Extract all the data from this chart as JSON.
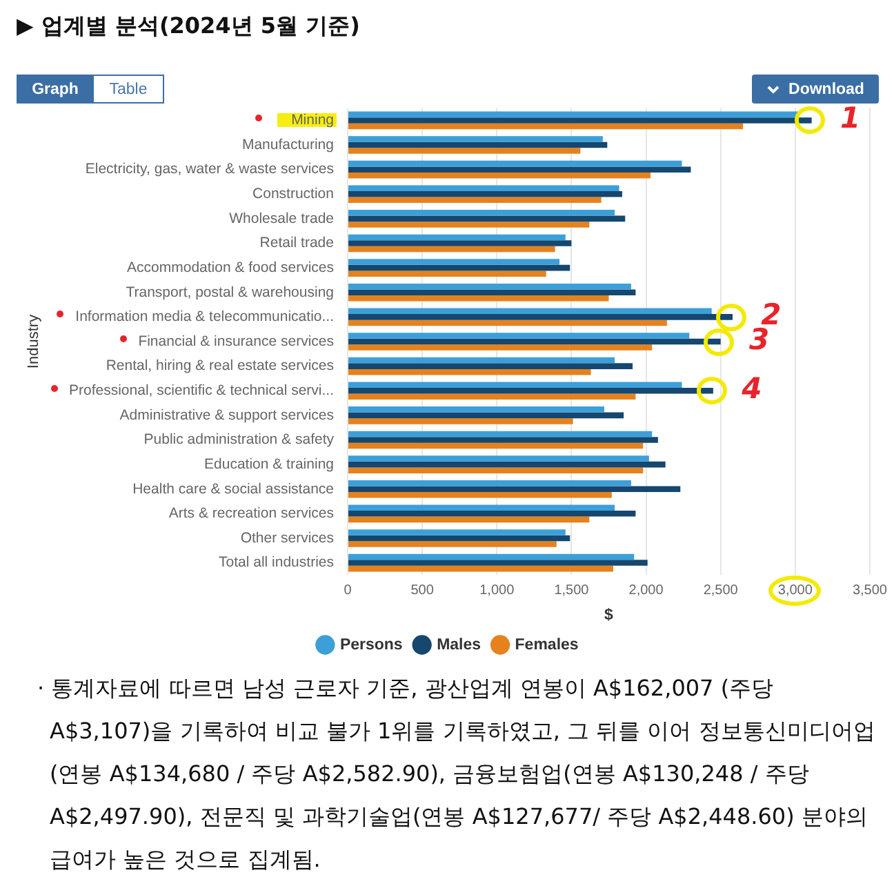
{
  "chart_data": {
    "type": "bar",
    "orientation": "horizontal",
    "title": "▶ 업계별 분석(2024년 5월 기준)",
    "xlabel": "$",
    "ylabel": "Industry",
    "categories": [
      "Mining",
      "Manufacturing",
      "Electricity, gas, water & waste services",
      "Construction",
      "Wholesale trade",
      "Retail trade",
      "Accommodation & food services",
      "Transport, postal & warehousing",
      "Information media & telecommunicatio...",
      "Financial & insurance services",
      "Rental, hiring & real estate services",
      "Professional, scientific & technical servi...",
      "Administrative & support services",
      "Public administration & safety",
      "Education & training",
      "Health care & social assistance",
      "Arts & recreation services",
      "Other services",
      "Total all industries"
    ],
    "series": [
      {
        "name": "Persons",
        "color": "#3d9fd8",
        "values": [
          3020,
          1710,
          2240,
          1820,
          1790,
          1460,
          1420,
          1900,
          2440,
          2290,
          1790,
          2240,
          1720,
          2040,
          2020,
          1900,
          1790,
          1460,
          1920
        ]
      },
      {
        "name": "Males",
        "color": "#15476f",
        "values": [
          3110,
          1740,
          2300,
          1840,
          1860,
          1500,
          1490,
          1930,
          2580,
          2500,
          1910,
          2450,
          1850,
          2080,
          2130,
          2230,
          1930,
          1490,
          2010
        ]
      },
      {
        "name": "Females",
        "color": "#e5821e",
        "values": [
          2650,
          1560,
          2030,
          1700,
          1620,
          1390,
          1330,
          1750,
          2140,
          2040,
          1630,
          1930,
          1510,
          1980,
          1980,
          1770,
          1620,
          1400,
          1780
        ]
      }
    ],
    "xlim": [
      0,
      3500
    ],
    "xticks": [
      0,
      500,
      {
        "value": 1000,
        "label": "1,000"
      },
      {
        "value": 1500,
        "label": "1,500"
      },
      {
        "value": 2000,
        "label": "2,000"
      },
      {
        "value": 2500,
        "label": "2,500"
      },
      {
        "value": 3000,
        "label": "3,000"
      },
      {
        "value": 3500,
        "label": "3,500"
      }
    ],
    "grid": "x",
    "legend": "bottom",
    "annotations": [
      "Graph",
      "Table",
      "Download",
      {
        "text": "1",
        "x": 3110,
        "y": "Mining"
      },
      {
        "text": "2",
        "x": 2580,
        "y": "Information media & telecommunicatio..."
      },
      {
        "text": "3",
        "x": 2500,
        "y": "Financial & insurance services"
      },
      {
        "text": "4",
        "x": 2450,
        "y": "Professional, scientific & technical servi..."
      },
      "· 통계자료에 따르면 남성 근로자 기준, 광산업계 연봉이 A$162,007 (주당 A$3,107)을 기록하여 비교 불가 1위를 기록하였고, 그 뒤를 이어 정보통신미디어업(연봉 A$134,680 / 주당 A$2,582.90), 금융보험업(연봉 A$130,248 / 주당 A$2,497.90), 전문직 및 과학기술업(연봉 A$127,677/ 주당 A$2,448.60) 분야의 급여가 높은 것으로 집계됨."
    ]
  }
}
